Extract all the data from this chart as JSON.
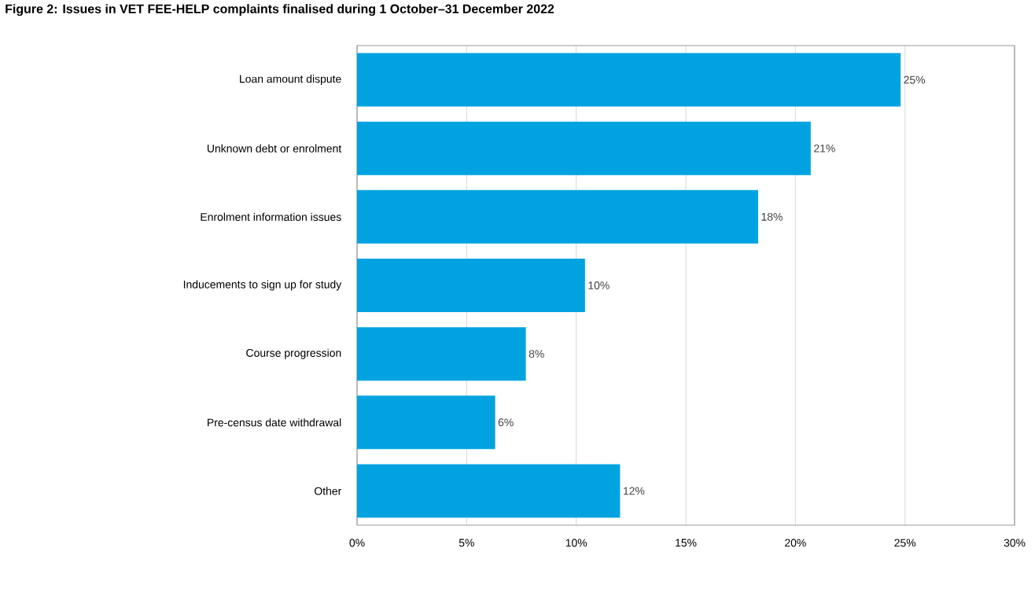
{
  "chart_data": {
    "type": "bar",
    "orientation": "horizontal",
    "title": "Figure 2: Issues in VET FEE-HELP complaints finalised during 1 October–31 December 2022",
    "categories": [
      "Loan amount dispute",
      "Unknown debt or enrolment",
      "Enrolment information issues",
      "Inducements to sign up for study",
      "Course progression",
      "Pre-census date withdrawal",
      "Other"
    ],
    "values": [
      24.8,
      20.7,
      18.3,
      10.4,
      7.7,
      6.3,
      12.0
    ],
    "value_labels": [
      "25%",
      "21%",
      "18%",
      "10%",
      "8%",
      "6%",
      "12%"
    ],
    "color": "#00a3e0",
    "xlim": [
      0,
      30
    ],
    "xticks": [
      {
        "value": 0,
        "label": "0%"
      },
      {
        "value": 5,
        "label": "5%"
      },
      {
        "value": 10,
        "label": "10%"
      },
      {
        "value": 15,
        "label": "15%"
      },
      {
        "value": 20,
        "label": "20%"
      },
      {
        "value": 25,
        "label": "25%"
      },
      {
        "value": 30,
        "label": "30%"
      }
    ],
    "grid": "x"
  }
}
